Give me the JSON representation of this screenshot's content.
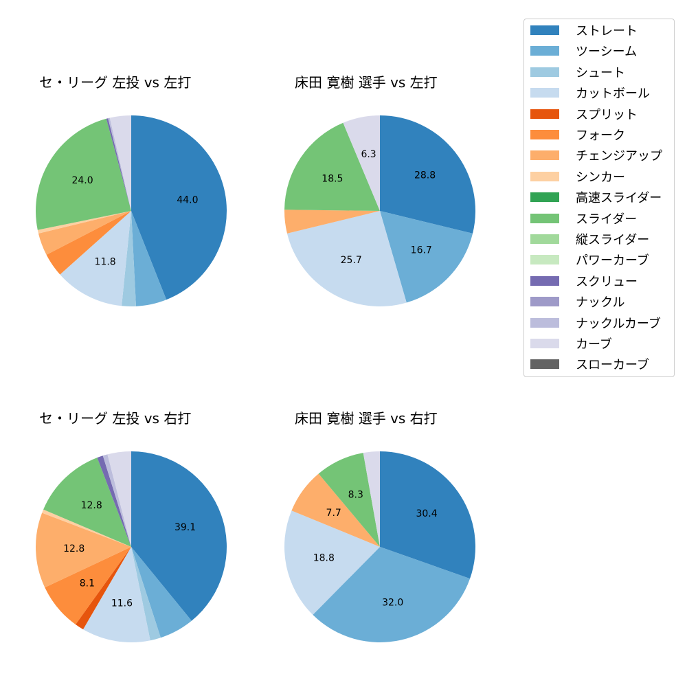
{
  "colors": {
    "ストレート": "#3182bd",
    "ツーシーム": "#6baed6",
    "シュート": "#9ecae1",
    "カットボール": "#c6dbef",
    "スプリット": "#e6550d",
    "フォーク": "#fd8d3c",
    "チェンジアップ": "#fdae6b",
    "シンカー": "#fdd0a2",
    "高速スライダー": "#31a354",
    "スライダー": "#74c476",
    "縦スライダー": "#a1d99b",
    "パワーカーブ": "#c7e9c0",
    "スクリュー": "#756bb1",
    "ナックル": "#9e9ac8",
    "ナックルカーブ": "#bcbddc",
    "カーブ": "#dadaeb",
    "スローカーブ": "#636363"
  },
  "legend": {
    "items": [
      "ストレート",
      "ツーシーム",
      "シュート",
      "カットボール",
      "スプリット",
      "フォーク",
      "チェンジアップ",
      "シンカー",
      "高速スライダー",
      "スライダー",
      "縦スライダー",
      "パワーカーブ",
      "スクリュー",
      "ナックル",
      "ナックルカーブ",
      "カーブ",
      "スローカーブ"
    ]
  },
  "chart_data": [
    {
      "type": "pie",
      "title": "セ・リーグ 左投 vs 左打",
      "categories": [
        "ストレート",
        "ツーシーム",
        "シュート",
        "カットボール",
        "フォーク",
        "チェンジアップ",
        "シンカー",
        "スライダー",
        "スクリュー",
        "ナックルカーブ",
        "カーブ"
      ],
      "values": [
        44.0,
        5.2,
        2.4,
        11.8,
        4.0,
        3.8,
        0.6,
        24.0,
        0.3,
        0.3,
        3.6
      ],
      "labels_shown": [
        true,
        false,
        false,
        true,
        false,
        false,
        false,
        true,
        false,
        false,
        false
      ]
    },
    {
      "type": "pie",
      "title": "床田 寛樹 選手 vs 左打",
      "categories": [
        "ストレート",
        "ツーシーム",
        "カットボール",
        "チェンジアップ",
        "スライダー",
        "カーブ"
      ],
      "values": [
        28.8,
        16.7,
        25.7,
        4.0,
        18.5,
        6.3
      ],
      "labels_shown": [
        true,
        true,
        true,
        false,
        true,
        true
      ]
    },
    {
      "type": "pie",
      "title": "セ・リーグ 左投 vs 右打",
      "categories": [
        "ストレート",
        "ツーシーム",
        "シュート",
        "カットボール",
        "スプリット",
        "フォーク",
        "チェンジアップ",
        "シンカー",
        "スライダー",
        "スクリュー",
        "ナックルカーブ",
        "カーブ"
      ],
      "values": [
        39.1,
        5.9,
        1.8,
        11.6,
        1.5,
        8.1,
        12.8,
        0.6,
        12.8,
        1.0,
        0.8,
        4.0
      ],
      "labels_shown": [
        true,
        false,
        false,
        true,
        false,
        true,
        true,
        false,
        true,
        false,
        false,
        false
      ]
    },
    {
      "type": "pie",
      "title": "床田 寛樹 選手 vs 右打",
      "categories": [
        "ストレート",
        "ツーシーム",
        "カットボール",
        "チェンジアップ",
        "スライダー",
        "カーブ"
      ],
      "values": [
        30.4,
        32.0,
        18.8,
        7.7,
        8.3,
        2.8
      ],
      "labels_shown": [
        true,
        true,
        true,
        true,
        true,
        false
      ]
    }
  ]
}
